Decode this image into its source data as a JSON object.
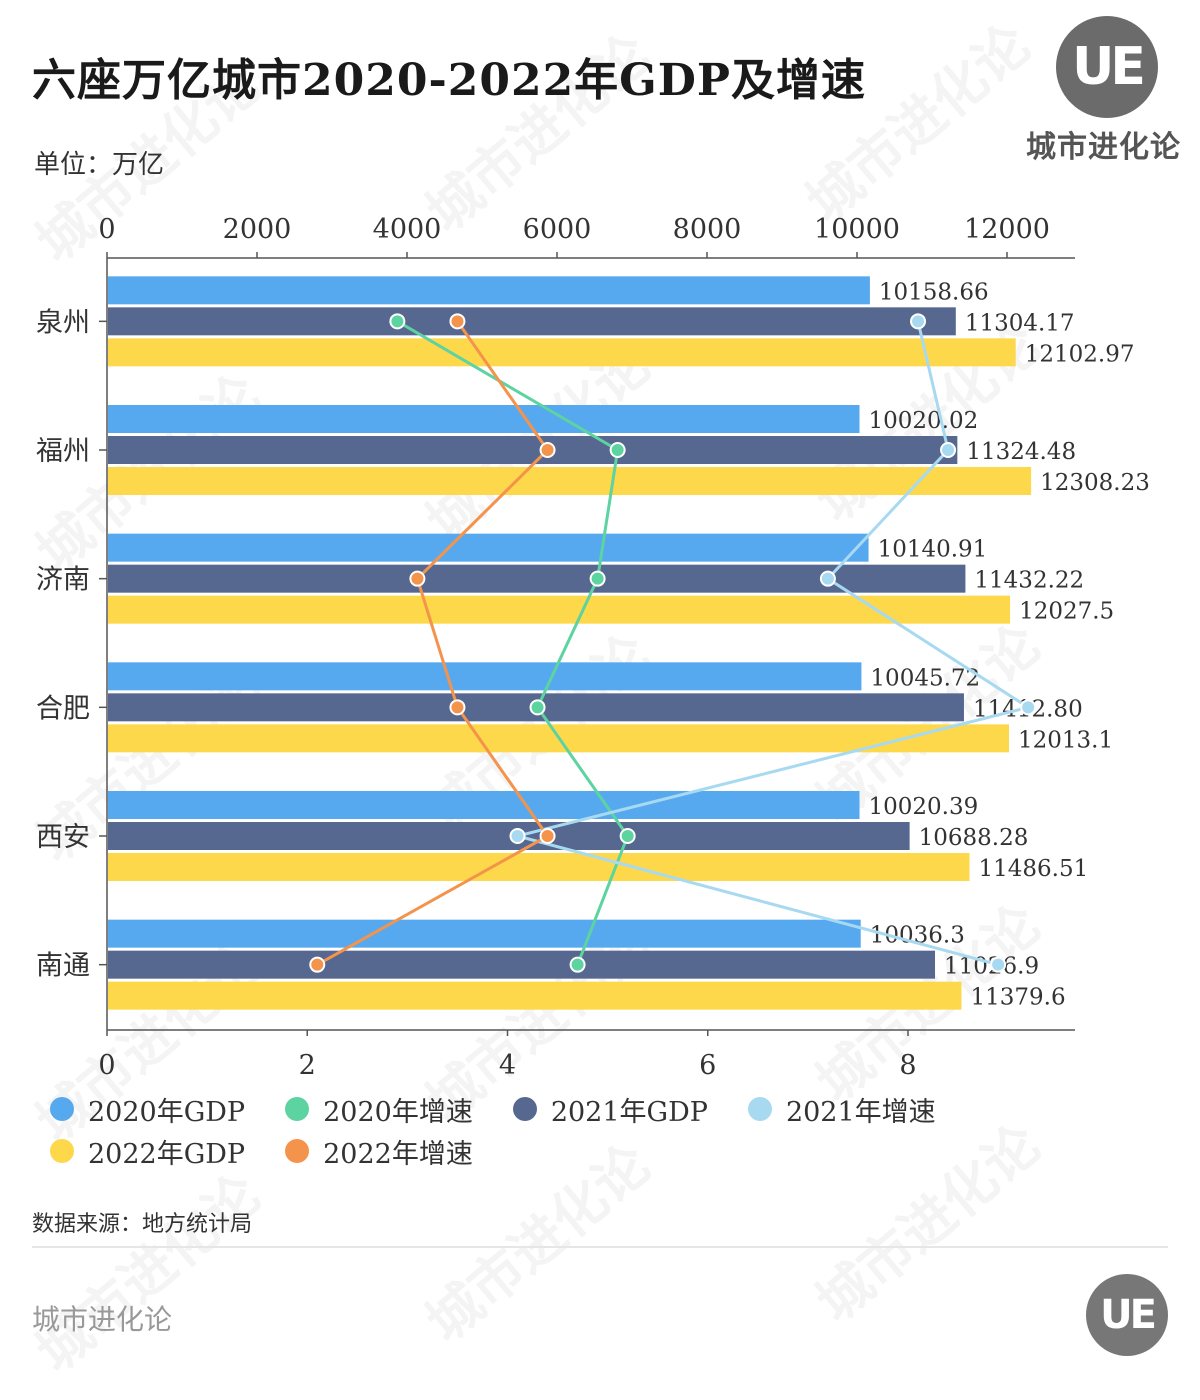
{
  "header": {
    "title": "六座万亿城市2020-2022年GDP及增速",
    "unit": "单位：万亿",
    "brand_logo": "UE",
    "brand_name": "城市进化论"
  },
  "footer": {
    "source": "数据来源：地方统计局",
    "brand": "城市进化论",
    "logo": "UE"
  },
  "colors": {
    "gdp2020": "#56a9ef",
    "gdp2021": "#56688f",
    "gdp2022": "#fdd84a",
    "growth2020": "#5dd3a1",
    "growth2021": "#a7d9f1",
    "growth2022": "#f4944c"
  },
  "chart_data": {
    "type": "bar",
    "orientation": "horizontal",
    "title": "六座万亿城市2020-2022年GDP及增速",
    "categories": [
      "泉州",
      "福州",
      "济南",
      "合肥",
      "西安",
      "南通"
    ],
    "top_axis": {
      "range": [
        0,
        12000
      ],
      "ticks": [
        "0",
        "2000",
        "4000",
        "6000",
        "8000",
        "10000",
        "12000"
      ]
    },
    "bottom_axis": {
      "range": [
        0,
        9
      ],
      "ticks": [
        "0",
        "2",
        "4",
        "6",
        "8"
      ]
    },
    "bar_series": [
      {
        "name": "2020年GDP",
        "color": "#56a9ef",
        "values": [
          10158.66,
          10020.02,
          10140.91,
          10045.72,
          10020.39,
          10036.3
        ],
        "labels": [
          "10158.66",
          "10020.02",
          "10140.91",
          "10045.72",
          "10020.39",
          "10036.3"
        ]
      },
      {
        "name": "2021年GDP",
        "color": "#56688f",
        "values": [
          11304.17,
          11324.48,
          11432.22,
          11412.8,
          10688.28,
          11026.9
        ],
        "labels": [
          "11304.17",
          "11324.48",
          "11432.22",
          "11412.80",
          "10688.28",
          "11026.9"
        ]
      },
      {
        "name": "2022年GDP",
        "color": "#fdd84a",
        "values": [
          12102.97,
          12308.23,
          12027.5,
          12013.1,
          11486.51,
          11379.6
        ],
        "labels": [
          "12102.97",
          "12308.23",
          "12027.5",
          "12013.1",
          "11486.51",
          "11379.6"
        ]
      }
    ],
    "line_series": [
      {
        "name": "2020年增速",
        "color": "#5dd3a1",
        "values": [
          2.9,
          5.1,
          4.9,
          4.3,
          5.2,
          4.7
        ]
      },
      {
        "name": "2021年增速",
        "color": "#a7d9f1",
        "values": [
          8.1,
          8.4,
          7.2,
          9.2,
          4.1,
          8.9
        ]
      },
      {
        "name": "2022年增速",
        "color": "#f4944c",
        "values": [
          3.5,
          4.4,
          3.1,
          3.5,
          4.4,
          2.1
        ]
      }
    ],
    "legend": [
      {
        "name": "2020年GDP",
        "color": "#56a9ef"
      },
      {
        "name": "2020年增速",
        "color": "#5dd3a1"
      },
      {
        "name": "2021年GDP",
        "color": "#56688f"
      },
      {
        "name": "2021年增速",
        "color": "#a7d9f1"
      },
      {
        "name": "2022年GDP",
        "color": "#fdd84a"
      },
      {
        "name": "2022年增速",
        "color": "#f4944c"
      }
    ],
    "legend_position": "bottom",
    "grid": false
  }
}
